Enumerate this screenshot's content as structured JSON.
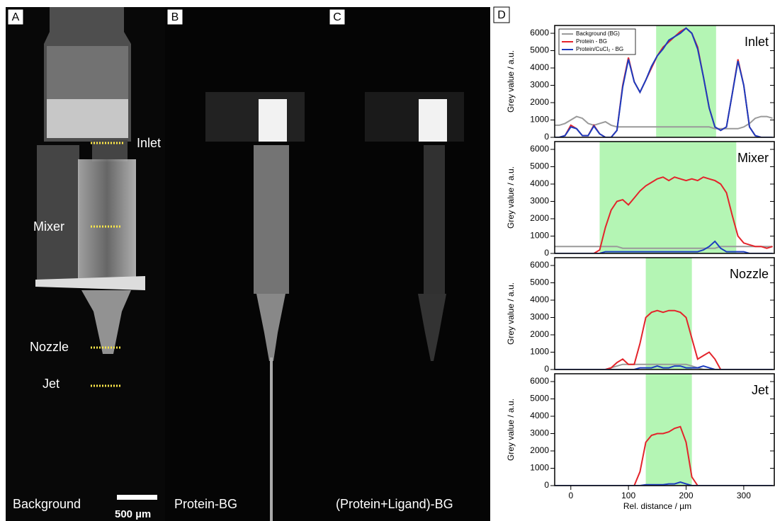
{
  "panels": {
    "a": {
      "letter": "A",
      "labels": [
        "Inlet",
        "Mixer",
        "Nozzle",
        "Jet"
      ],
      "caption": "Background",
      "scale": "500 µm"
    },
    "b": {
      "letter": "B",
      "caption": "Protein-BG"
    },
    "c": {
      "letter": "C",
      "caption": "(Protein+Ligand)-BG"
    },
    "d": {
      "letter": "D"
    }
  },
  "chart_data": [
    {
      "type": "line",
      "title": "Inlet",
      "ylabel": "Grey value / a.u.",
      "xlim": [
        -28,
        353
      ],
      "ylim": [
        0,
        6450
      ],
      "yticks": [
        0,
        1000,
        2000,
        3000,
        4000,
        5000,
        6000
      ],
      "span": [
        148,
        252
      ],
      "span_color": "#b4f5b4",
      "legend": "upper left",
      "x": [
        -30,
        -20,
        -10,
        0,
        10,
        20,
        30,
        40,
        50,
        60,
        70,
        80,
        90,
        100,
        110,
        120,
        130,
        140,
        150,
        160,
        170,
        180,
        190,
        200,
        210,
        220,
        230,
        240,
        250,
        260,
        270,
        280,
        290,
        300,
        310,
        320,
        330,
        340,
        350
      ],
      "series": [
        {
          "name": "Background (BG)",
          "color": "#9a9a9a",
          "values": [
            700,
            700,
            800,
            1000,
            1200,
            1100,
            800,
            700,
            800,
            900,
            700,
            600,
            600,
            600,
            600,
            600,
            600,
            600,
            600,
            600,
            600,
            600,
            600,
            600,
            600,
            600,
            600,
            600,
            500,
            500,
            500,
            500,
            500,
            600,
            800,
            1100,
            1200,
            1200,
            1100
          ]
        },
        {
          "name": "Protein - BG",
          "color": "#e3242b",
          "values": [
            0,
            0,
            100,
            700,
            500,
            100,
            100,
            700,
            200,
            0,
            0,
            400,
            3000,
            4600,
            3200,
            2600,
            3300,
            4000,
            4700,
            5200,
            5500,
            5800,
            6100,
            6300,
            6000,
            5200,
            3500,
            1700,
            600,
            400,
            600,
            2500,
            4500,
            3000,
            600,
            100,
            0,
            0,
            0
          ]
        },
        {
          "name": "Protein/CuCl₂ - BG",
          "color": "#1c3cbf",
          "values": [
            0,
            0,
            100,
            600,
            500,
            100,
            100,
            650,
            200,
            0,
            0,
            400,
            2900,
            4500,
            3200,
            2600,
            3300,
            4100,
            4700,
            5100,
            5600,
            5800,
            6000,
            6300,
            6000,
            5100,
            3500,
            1700,
            600,
            400,
            600,
            2500,
            4400,
            3000,
            600,
            100,
            0,
            0,
            0
          ]
        }
      ]
    },
    {
      "type": "line",
      "title": "Mixer",
      "ylabel": "Grey value / a.u.",
      "xlim": [
        -28,
        353
      ],
      "ylim": [
        0,
        6450
      ],
      "yticks": [
        0,
        1000,
        2000,
        3000,
        4000,
        5000,
        6000
      ],
      "span": [
        50,
        287
      ],
      "span_color": "#b4f5b4",
      "x": [
        -30,
        -20,
        -10,
        0,
        10,
        20,
        30,
        40,
        50,
        60,
        70,
        80,
        90,
        100,
        110,
        120,
        130,
        140,
        150,
        160,
        170,
        180,
        190,
        200,
        210,
        220,
        230,
        240,
        250,
        260,
        270,
        280,
        290,
        300,
        310,
        320,
        330,
        340,
        350
      ],
      "series": [
        {
          "color": "#9a9a9a",
          "values": [
            400,
            400,
            400,
            400,
            400,
            400,
            400,
            400,
            400,
            400,
            400,
            400,
            300,
            300,
            300,
            300,
            300,
            300,
            300,
            300,
            300,
            300,
            300,
            300,
            300,
            300,
            300,
            300,
            300,
            400,
            400,
            400,
            400,
            400,
            400,
            400,
            400,
            400,
            400
          ]
        },
        {
          "color": "#e3242b",
          "values": [
            0,
            0,
            0,
            0,
            0,
            0,
            0,
            0,
            200,
            1500,
            2500,
            3000,
            3100,
            2800,
            3200,
            3600,
            3900,
            4100,
            4300,
            4400,
            4200,
            4400,
            4300,
            4200,
            4300,
            4200,
            4400,
            4300,
            4200,
            4000,
            3500,
            2200,
            1000,
            600,
            500,
            400,
            400,
            300,
            400
          ]
        },
        {
          "color": "#1c3cbf",
          "values": [
            0,
            0,
            0,
            0,
            0,
            0,
            0,
            0,
            0,
            100,
            100,
            100,
            100,
            100,
            100,
            100,
            100,
            100,
            100,
            100,
            100,
            100,
            100,
            100,
            100,
            100,
            200,
            400,
            700,
            300,
            100,
            100,
            100,
            100,
            0,
            0,
            0,
            0,
            0
          ]
        }
      ]
    },
    {
      "type": "line",
      "title": "Nozzle",
      "ylabel": "Grey value / a.u.",
      "xlim": [
        -28,
        353
      ],
      "ylim": [
        0,
        6450
      ],
      "yticks": [
        0,
        1000,
        2000,
        3000,
        4000,
        5000,
        6000
      ],
      "span": [
        130,
        210
      ],
      "span_color": "#b4f5b4",
      "x": [
        -30,
        -20,
        -10,
        0,
        10,
        20,
        30,
        40,
        50,
        60,
        70,
        80,
        90,
        100,
        110,
        120,
        130,
        140,
        150,
        160,
        170,
        180,
        190,
        200,
        210,
        220,
        230,
        240,
        250,
        260,
        270,
        280,
        290,
        300,
        310,
        320,
        330,
        340,
        350
      ],
      "series": [
        {
          "color": "#9a9a9a",
          "values": [
            0,
            0,
            0,
            0,
            0,
            0,
            0,
            0,
            0,
            0,
            100,
            200,
            300,
            300,
            300,
            300,
            300,
            300,
            300,
            300,
            300,
            300,
            300,
            300,
            200,
            100,
            0,
            0,
            0,
            0,
            0,
            0,
            0,
            0,
            0,
            0,
            0,
            0,
            0
          ]
        },
        {
          "color": "#e3242b",
          "values": [
            0,
            0,
            0,
            0,
            0,
            0,
            0,
            0,
            0,
            0,
            100,
            400,
            600,
            300,
            300,
            1500,
            3000,
            3300,
            3400,
            3300,
            3400,
            3400,
            3300,
            3000,
            1800,
            600,
            800,
            1000,
            600,
            0,
            0,
            0,
            0,
            0,
            0,
            0,
            0,
            0,
            0
          ]
        },
        {
          "color": "#1c3cbf",
          "values": [
            0,
            0,
            0,
            0,
            0,
            0,
            0,
            0,
            0,
            0,
            0,
            0,
            0,
            0,
            0,
            100,
            100,
            100,
            200,
            100,
            100,
            200,
            200,
            100,
            100,
            100,
            200,
            100,
            0,
            0,
            0,
            0,
            0,
            0,
            0,
            0,
            0,
            0,
            0
          ]
        }
      ]
    },
    {
      "type": "line",
      "title": "Jet",
      "ylabel": "Grey value / a.u.",
      "xlabel": "Rel. distance / µm",
      "xlim": [
        -28,
        353
      ],
      "ylim": [
        0,
        6450
      ],
      "yticks": [
        0,
        1000,
        2000,
        3000,
        4000,
        5000,
        6000
      ],
      "xticks": [
        0,
        100,
        200,
        300
      ],
      "span": [
        130,
        210
      ],
      "span_color": "#b4f5b4",
      "x": [
        -30,
        -20,
        -10,
        0,
        10,
        20,
        30,
        40,
        50,
        60,
        70,
        80,
        90,
        100,
        110,
        120,
        130,
        140,
        150,
        160,
        170,
        180,
        190,
        200,
        210,
        220,
        230,
        240,
        250,
        260,
        270,
        280,
        290,
        300,
        310,
        320,
        330,
        340,
        350
      ],
      "series": [
        {
          "color": "#9a9a9a",
          "values": [
            0,
            0,
            0,
            0,
            0,
            0,
            0,
            0,
            0,
            0,
            0,
            0,
            0,
            0,
            0,
            0,
            0,
            0,
            0,
            0,
            0,
            0,
            0,
            0,
            0,
            0,
            0,
            0,
            0,
            0,
            0,
            0,
            0,
            0,
            0,
            0,
            0,
            0,
            0
          ]
        },
        {
          "color": "#e3242b",
          "values": [
            0,
            0,
            0,
            0,
            0,
            0,
            0,
            0,
            0,
            0,
            0,
            0,
            0,
            0,
            0,
            800,
            2500,
            2900,
            3000,
            3000,
            3100,
            3300,
            3400,
            2500,
            500,
            0,
            0,
            0,
            0,
            0,
            0,
            0,
            0,
            0,
            0,
            0,
            0,
            0,
            0
          ]
        },
        {
          "color": "#1c3cbf",
          "values": [
            0,
            0,
            0,
            0,
            0,
            0,
            0,
            0,
            0,
            0,
            0,
            0,
            0,
            0,
            0,
            0,
            50,
            50,
            50,
            50,
            100,
            100,
            200,
            100,
            0,
            0,
            0,
            0,
            0,
            0,
            0,
            0,
            0,
            0,
            0,
            0,
            0,
            0,
            0
          ]
        }
      ]
    }
  ]
}
